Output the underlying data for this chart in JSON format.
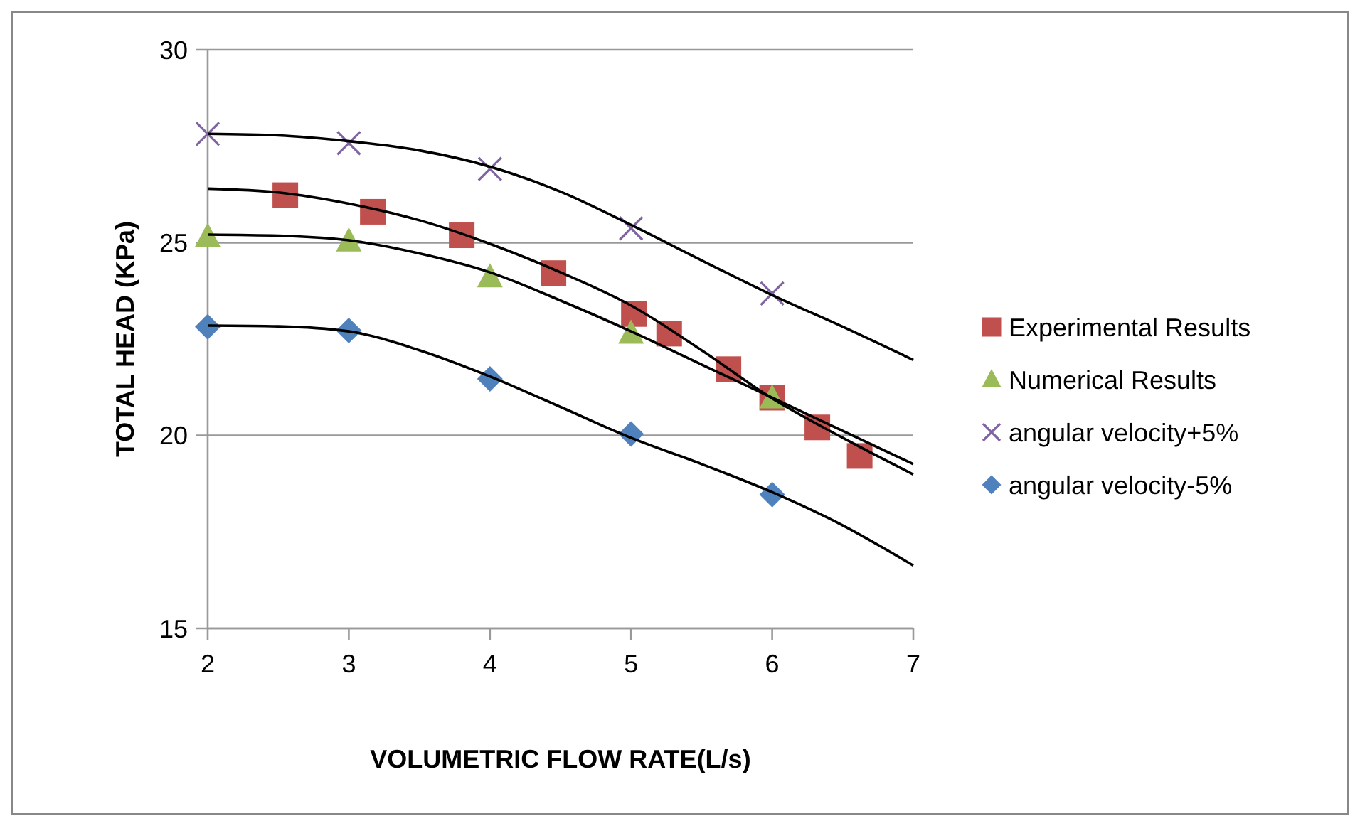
{
  "chart_data": {
    "type": "scatter",
    "xlabel": "VOLUMETRIC FLOW RATE(L/s)",
    "ylabel": "TOTAL HEAD (KPa)",
    "xlim": [
      2,
      7
    ],
    "ylim": [
      15,
      30
    ],
    "xticks": [
      2,
      3,
      4,
      5,
      6,
      7
    ],
    "yticks": [
      15,
      20,
      25,
      30
    ],
    "grid": "y",
    "legend": "right",
    "series": [
      {
        "name": "Experimental Results",
        "marker": "square",
        "color": "#c0504d",
        "x": [
          2.55,
          3.17,
          3.8,
          4.45,
          5.02,
          5.27,
          5.69,
          6.0,
          6.32,
          6.62
        ],
        "values": [
          26.23,
          25.8,
          25.19,
          24.21,
          23.15,
          22.64,
          21.72,
          20.98,
          20.21,
          19.47
        ]
      },
      {
        "name": "Numerical Results",
        "marker": "triangle",
        "color": "#9bbb59",
        "x": [
          2,
          3,
          4,
          5,
          6
        ],
        "values": [
          25.15,
          25.03,
          24.1,
          22.64,
          20.96
        ]
      },
      {
        "name": "angular velocity+5%",
        "marker": "cross",
        "color": "#8064a2",
        "x": [
          2,
          3,
          4,
          5,
          6
        ],
        "values": [
          27.82,
          27.58,
          26.91,
          25.37,
          23.68
        ]
      },
      {
        "name": "angular velocity-5%",
        "marker": "diamond",
        "color": "#4f81bd",
        "x": [
          2,
          3,
          4,
          5,
          6
        ],
        "values": [
          22.82,
          22.72,
          21.47,
          20.04,
          18.47
        ]
      },
      {
        "type": "line",
        "marker": "none",
        "color": "#000000",
        "x": [
          2,
          2.5,
          3,
          3.5,
          4,
          4.5,
          5,
          5.5,
          6,
          6.5,
          7
        ],
        "values": [
          26.4,
          26.3,
          26.01,
          25.58,
          24.97,
          24.23,
          23.37,
          22.21,
          20.96,
          19.94,
          18.99
        ]
      },
      {
        "type": "line",
        "marker": "none",
        "color": "#000000",
        "x": [
          2,
          2.5,
          3,
          3.5,
          4,
          4.5,
          5,
          5.5,
          6,
          6.5,
          7
        ],
        "values": [
          25.21,
          25.18,
          25.06,
          24.72,
          24.23,
          23.5,
          22.7,
          21.84,
          20.98,
          20.12,
          19.26
        ]
      },
      {
        "type": "line",
        "marker": "none",
        "color": "#000000",
        "x": [
          2,
          2.5,
          3,
          3.5,
          4,
          4.5,
          5,
          5.5,
          6,
          6.5,
          7
        ],
        "values": [
          27.82,
          27.78,
          27.63,
          27.39,
          26.97,
          26.32,
          25.46,
          24.54,
          23.64,
          22.82,
          21.96
        ]
      },
      {
        "type": "line",
        "marker": "none",
        "color": "#000000",
        "x": [
          2,
          2.5,
          3,
          3.5,
          4,
          4.5,
          5,
          5.5,
          6,
          6.5,
          7
        ],
        "values": [
          22.85,
          22.83,
          22.7,
          22.21,
          21.53,
          20.74,
          19.94,
          19.26,
          18.53,
          17.67,
          16.63
        ]
      }
    ]
  }
}
